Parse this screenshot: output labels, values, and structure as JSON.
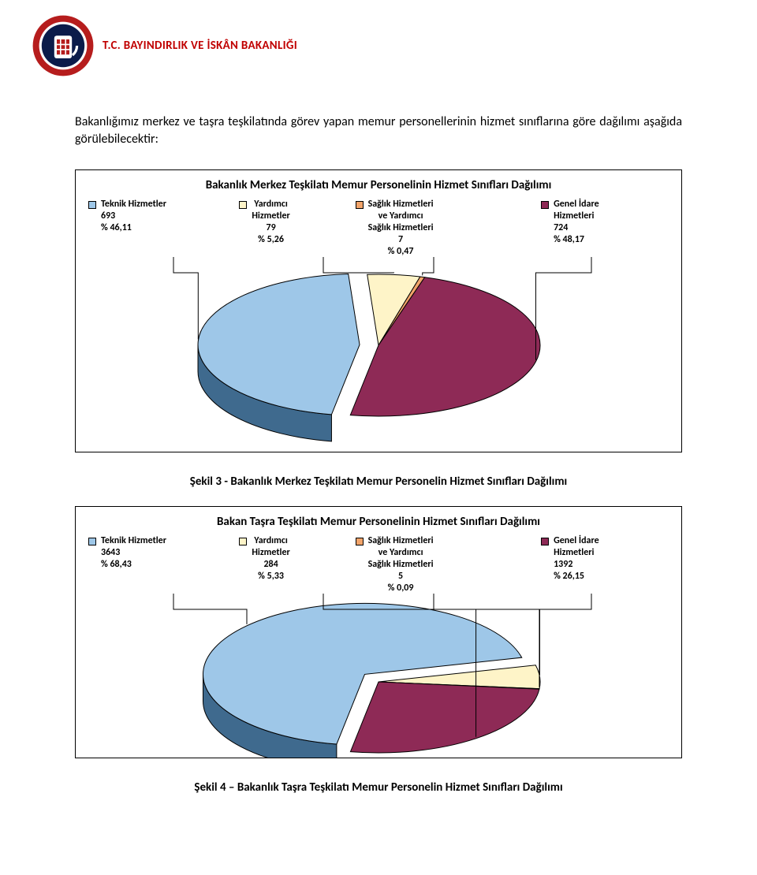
{
  "header": {
    "ministry": "T.C. BAYINDIRLIK VE İSKÂN BAKANLIĞI",
    "logo_colors": {
      "outer": "#b61d1d",
      "mid": "#0b1b4a",
      "inner": "#0b1b4a",
      "accent": "#ffffff"
    }
  },
  "intro_text": "Bakanlığımız merkez ve taşra teşkilatında görev yapan memur personellerinin hizmet sınıflarına göre dağılımı aşağıda görülebilecektir:",
  "chart1": {
    "type": "pie-3d",
    "title": "Bakanlık Merkez Teşkilatı Memur Personelinin Hizmet Sınıfları Dağılımı",
    "background_color": "#ffffff",
    "border_color": "#000000",
    "slices": [
      {
        "key": "teknik",
        "label": "Teknik Hizmetler",
        "count": 693,
        "pct_label": "% 46,11",
        "pct": 46.11,
        "color": "#9ec7e8",
        "marker": "#9ec7e8"
      },
      {
        "key": "yardimci",
        "label": "Yardımcı\nHizmetler",
        "count": 79,
        "pct_label": "% 5,26",
        "pct": 5.26,
        "color": "#fef4c8",
        "marker": "#fef4c8"
      },
      {
        "key": "saglik",
        "label": "Sağlık Hizmetleri\nve Yardımcı\nSağlık Hizmetleri",
        "count": 7,
        "pct_label": "% 0,47",
        "pct": 0.47,
        "color": "#f2a46a",
        "marker": "#f2a46a"
      },
      {
        "key": "idare",
        "label": "Genel İdare\nHizmetleri",
        "count": 724,
        "pct_label": "% 48,17",
        "pct": 48.17,
        "color": "#8e2a56",
        "marker": "#8e2a56"
      }
    ],
    "depth_color_teknik": "#3f6a8e",
    "depth_color_idare": "#5a1c38",
    "label_fontsize": 12
  },
  "caption1": "Şekil 3 - Bakanlık Merkez Teşkilatı Memur Personelin Hizmet Sınıfları Dağılımı",
  "chart2": {
    "type": "pie-3d",
    "title": "Bakan Taşra Teşkilatı Memur Personelinin Hizmet Sınıfları Dağılımı",
    "background_color": "#ffffff",
    "border_color": "#000000",
    "slices": [
      {
        "key": "teknik",
        "label": "Teknik Hizmetler",
        "count": 3643,
        "pct_label": "% 68,43",
        "pct": 68.43,
        "color": "#9ec7e8",
        "marker": "#9ec7e8"
      },
      {
        "key": "yardimci",
        "label": "Yardımcı\nHizmetler",
        "count": 284,
        "pct_label": "% 5,33",
        "pct": 5.33,
        "color": "#fef4c8",
        "marker": "#fef4c8"
      },
      {
        "key": "saglik",
        "label": "Sağlık Hizmetleri\nve Yardımcı\nSağlık Hizmetleri",
        "count": 5,
        "pct_label": "% 0,09",
        "pct": 0.09,
        "color": "#f2a46a",
        "marker": "#f2a46a"
      },
      {
        "key": "idare",
        "label": "Genel İdare\nHizmetleri",
        "count": 1392,
        "pct_label": "% 26,15",
        "pct": 26.15,
        "color": "#8e2a56",
        "marker": "#8e2a56"
      }
    ],
    "depth_color_teknik": "#3f6a8e",
    "depth_color_idare": "#5a1c38",
    "label_fontsize": 12
  },
  "caption2": "Şekil 4 – Bakanlık Taşra Teşkilatı Memur Personelin Hizmet Sınıfları Dağılımı"
}
